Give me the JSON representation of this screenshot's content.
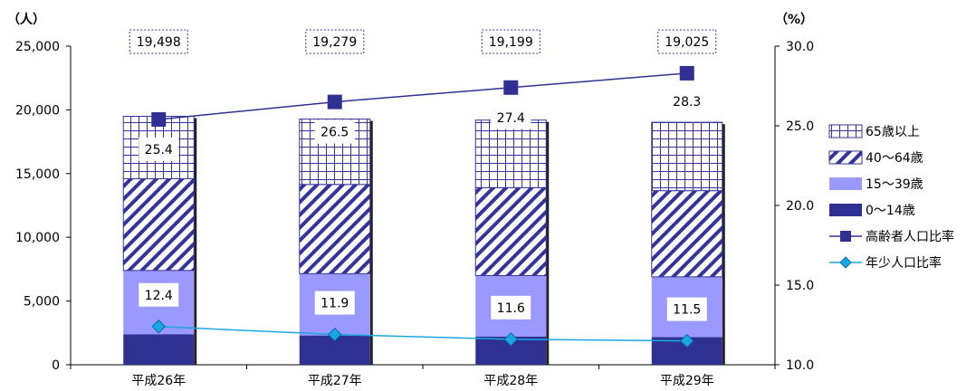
{
  "chart_data": {
    "type": "bar",
    "stacked": true,
    "categories": [
      "平成26年",
      "平成27年",
      "平成28年",
      "平成29年"
    ],
    "totals": [
      "19,498",
      "19,279",
      "19,199",
      "19,025"
    ],
    "y_unit": "（人）",
    "y2_unit": "（%）",
    "ylim": [
      0,
      25000
    ],
    "y_ticks": [
      "0",
      "5,000",
      "10,000",
      "15,000",
      "20,000",
      "25,000"
    ],
    "y_tick_values": [
      0,
      5000,
      10000,
      15000,
      20000,
      25000
    ],
    "y2lim": [
      10.0,
      30.0
    ],
    "y2_ticks": [
      "10.0",
      "15.0",
      "20.0",
      "25.0",
      "30.0"
    ],
    "y2_tick_values": [
      10,
      15,
      20,
      25,
      30
    ],
    "bar_series": [
      {
        "name": "0～14歳",
        "color": "#2f3192",
        "pattern": "solid",
        "values": [
          2400,
          2300,
          2220,
          2180
        ]
      },
      {
        "name": "15～39歳",
        "color": "#9999ff",
        "pattern": "solid",
        "values": [
          5000,
          4850,
          4780,
          4720
        ]
      },
      {
        "name": "40～64歳",
        "color": "#333399",
        "pattern": "diagonal",
        "values": [
          7200,
          7000,
          6900,
          6760
        ]
      },
      {
        "name": "65歳以上",
        "color": "#333399",
        "pattern": "grid",
        "values": [
          4898,
          5129,
          5299,
          5365
        ]
      }
    ],
    "line_series": [
      {
        "name": "高齢者人口比率",
        "color": "#2f3192",
        "marker": "square",
        "axis": "right",
        "values": [
          25.4,
          26.5,
          27.4,
          28.3
        ],
        "labels": [
          "25.4",
          "26.5",
          "27.4",
          "28.3"
        ]
      },
      {
        "name": "年少人口比率",
        "color": "#1aa6e6",
        "marker": "diamond",
        "axis": "right",
        "values": [
          12.4,
          11.9,
          11.6,
          11.5
        ],
        "labels": [
          "12.4",
          "11.9",
          "11.6",
          "11.5"
        ]
      }
    ],
    "legend_order": [
      "65歳以上",
      "40～64歳",
      "15～39歳",
      "0～14歳",
      "高齢者人口比率",
      "年少人口比率"
    ],
    "legend_position": "right",
    "grid": false
  }
}
